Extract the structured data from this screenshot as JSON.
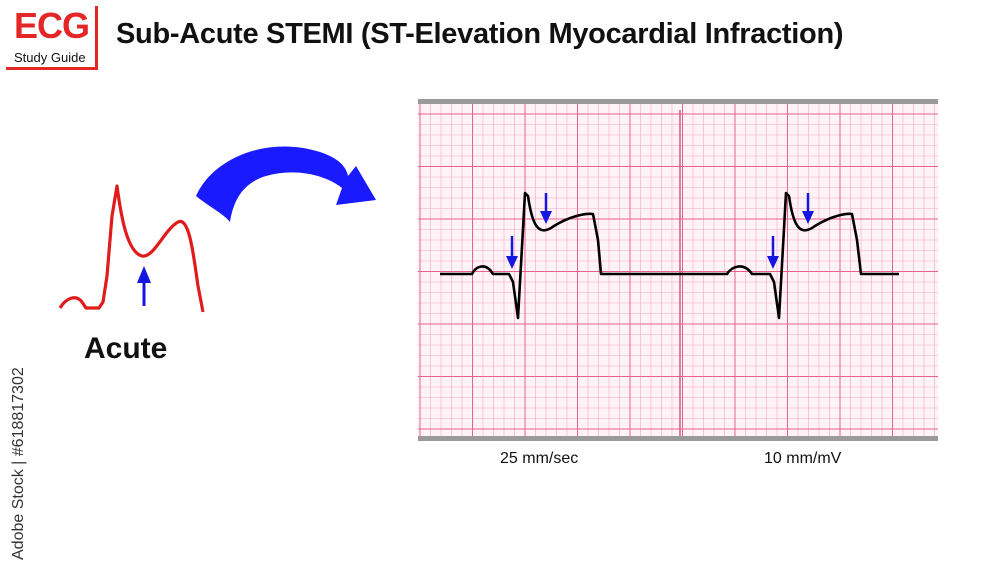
{
  "logo": {
    "main": "ECG",
    "sub": "Study Guide"
  },
  "title": "Sub-Acute STEMI (ST-Elevation Myocardial Infraction)",
  "left_panel": {
    "label": "Acute"
  },
  "strip": {
    "speed_label": "25 mm/sec",
    "gain_label": "10 mm/mV"
  },
  "watermark": "Adobe Stock | #618817302",
  "colors": {
    "logo_red": "#e32626",
    "acute_trace": "#e01b1b",
    "curved_arrow": "#1a1aff",
    "marker_arrow": "#1515e0",
    "grid_minor": "#f4a9c4",
    "grid_major": "#e8608e",
    "trace": "#000000"
  }
}
